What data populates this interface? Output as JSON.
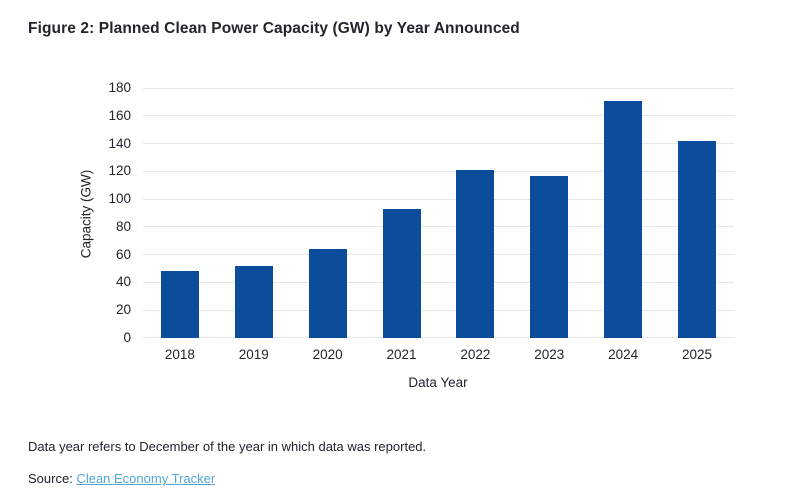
{
  "chart_data": {
    "type": "bar",
    "title": "Figure 2: Planned Clean Power Capacity (GW) by Year Announced",
    "categories": [
      "2018",
      "2019",
      "2020",
      "2021",
      "2022",
      "2023",
      "2024",
      "2025"
    ],
    "values": [
      48,
      52,
      64,
      93,
      121,
      117,
      171,
      142
    ],
    "xlabel": "Data Year",
    "ylabel": "Capacity (GW)",
    "ylim": [
      0,
      180
    ],
    "ytick_step": 20,
    "grid": "horizontal",
    "legend": "none",
    "bar_color": "#0b4d9b"
  },
  "colors": {
    "bar": "#0b4d9b",
    "grid": "#e7e7e7",
    "text": "#22242e",
    "link": "#54a7d9"
  },
  "footer": {
    "note": "Data year refers to December of the year in which data was reported.",
    "source_label": "Source:",
    "source_link_text": "Clean Economy Tracker"
  }
}
